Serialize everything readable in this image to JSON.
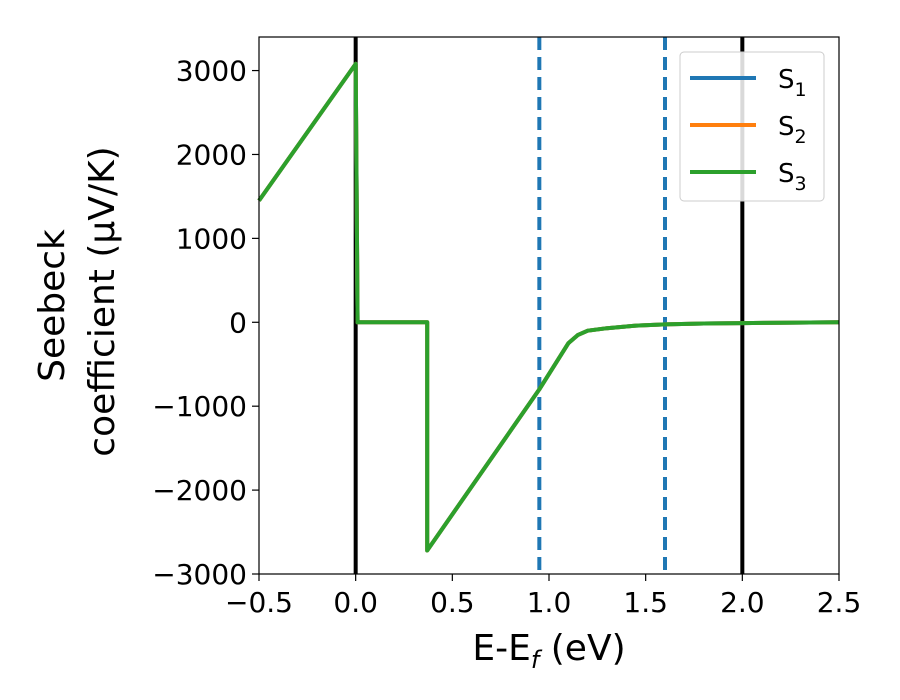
{
  "chart_data": {
    "type": "line",
    "xlabel_main": "E-E",
    "xlabel_sub": "f",
    "xlabel_unit": " (eV)",
    "ylabel_line1": "Seebeck",
    "ylabel_line2": "coefficient  (μV/K)",
    "xlim": [
      -0.5,
      2.5
    ],
    "ylim": [
      -3000,
      3400
    ],
    "xticks": [
      -0.5,
      0.0,
      0.5,
      1.0,
      1.5,
      2.0,
      2.5
    ],
    "xtick_labels": [
      "−0.5",
      "0.0",
      "0.5",
      "1.0",
      "1.5",
      "2.0",
      "2.5"
    ],
    "yticks": [
      3000,
      2000,
      1000,
      0,
      -1000,
      -2000,
      -3000
    ],
    "ytick_labels": [
      "3000",
      "2000",
      "1000",
      "0",
      "−1000",
      "−2000",
      "−3000"
    ],
    "legend_position": "top-right",
    "series": [
      {
        "name_base": "S",
        "name_sub": "1",
        "color": "#1f77b4",
        "points": [
          [
            -0.5,
            1450
          ],
          [
            0.0,
            3080
          ],
          [
            0.01,
            0
          ],
          [
            0.37,
            0
          ],
          [
            0.37,
            -2720
          ],
          [
            0.95,
            -800
          ],
          [
            1.1,
            -250
          ],
          [
            1.15,
            -150
          ],
          [
            1.2,
            -100
          ],
          [
            1.3,
            -70
          ],
          [
            1.45,
            -40
          ],
          [
            1.6,
            -25
          ],
          [
            1.8,
            -15
          ],
          [
            2.0,
            -10
          ],
          [
            2.2,
            -5
          ],
          [
            2.5,
            0
          ]
        ]
      },
      {
        "name_base": "S",
        "name_sub": "2",
        "color": "#ff7f0e",
        "points": [
          [
            -0.5,
            1450
          ],
          [
            0.0,
            3080
          ],
          [
            0.01,
            0
          ],
          [
            0.37,
            0
          ],
          [
            0.37,
            -2720
          ],
          [
            0.95,
            -800
          ],
          [
            1.1,
            -250
          ],
          [
            1.15,
            -150
          ],
          [
            1.2,
            -100
          ],
          [
            1.3,
            -70
          ],
          [
            1.45,
            -40
          ],
          [
            1.6,
            -25
          ],
          [
            1.8,
            -15
          ],
          [
            2.0,
            -10
          ],
          [
            2.2,
            -5
          ],
          [
            2.5,
            0
          ]
        ]
      },
      {
        "name_base": "S",
        "name_sub": "3",
        "color": "#2ca02c",
        "points": [
          [
            -0.5,
            1450
          ],
          [
            0.0,
            3080
          ],
          [
            0.01,
            0
          ],
          [
            0.37,
            0
          ],
          [
            0.37,
            -2720
          ],
          [
            0.95,
            -800
          ],
          [
            1.1,
            -250
          ],
          [
            1.15,
            -150
          ],
          [
            1.2,
            -100
          ],
          [
            1.3,
            -70
          ],
          [
            1.45,
            -40
          ],
          [
            1.6,
            -25
          ],
          [
            1.8,
            -15
          ],
          [
            2.0,
            -10
          ],
          [
            2.2,
            -5
          ],
          [
            2.5,
            0
          ]
        ]
      }
    ],
    "vertical_lines": [
      {
        "x": 0.0,
        "style": "solid",
        "color": "#000000"
      },
      {
        "x": 2.0,
        "style": "solid",
        "color": "#000000"
      },
      {
        "x": 0.95,
        "style": "dashed",
        "color": "#1f77b4"
      },
      {
        "x": 1.6,
        "style": "dashed",
        "color": "#1f77b4"
      }
    ]
  }
}
